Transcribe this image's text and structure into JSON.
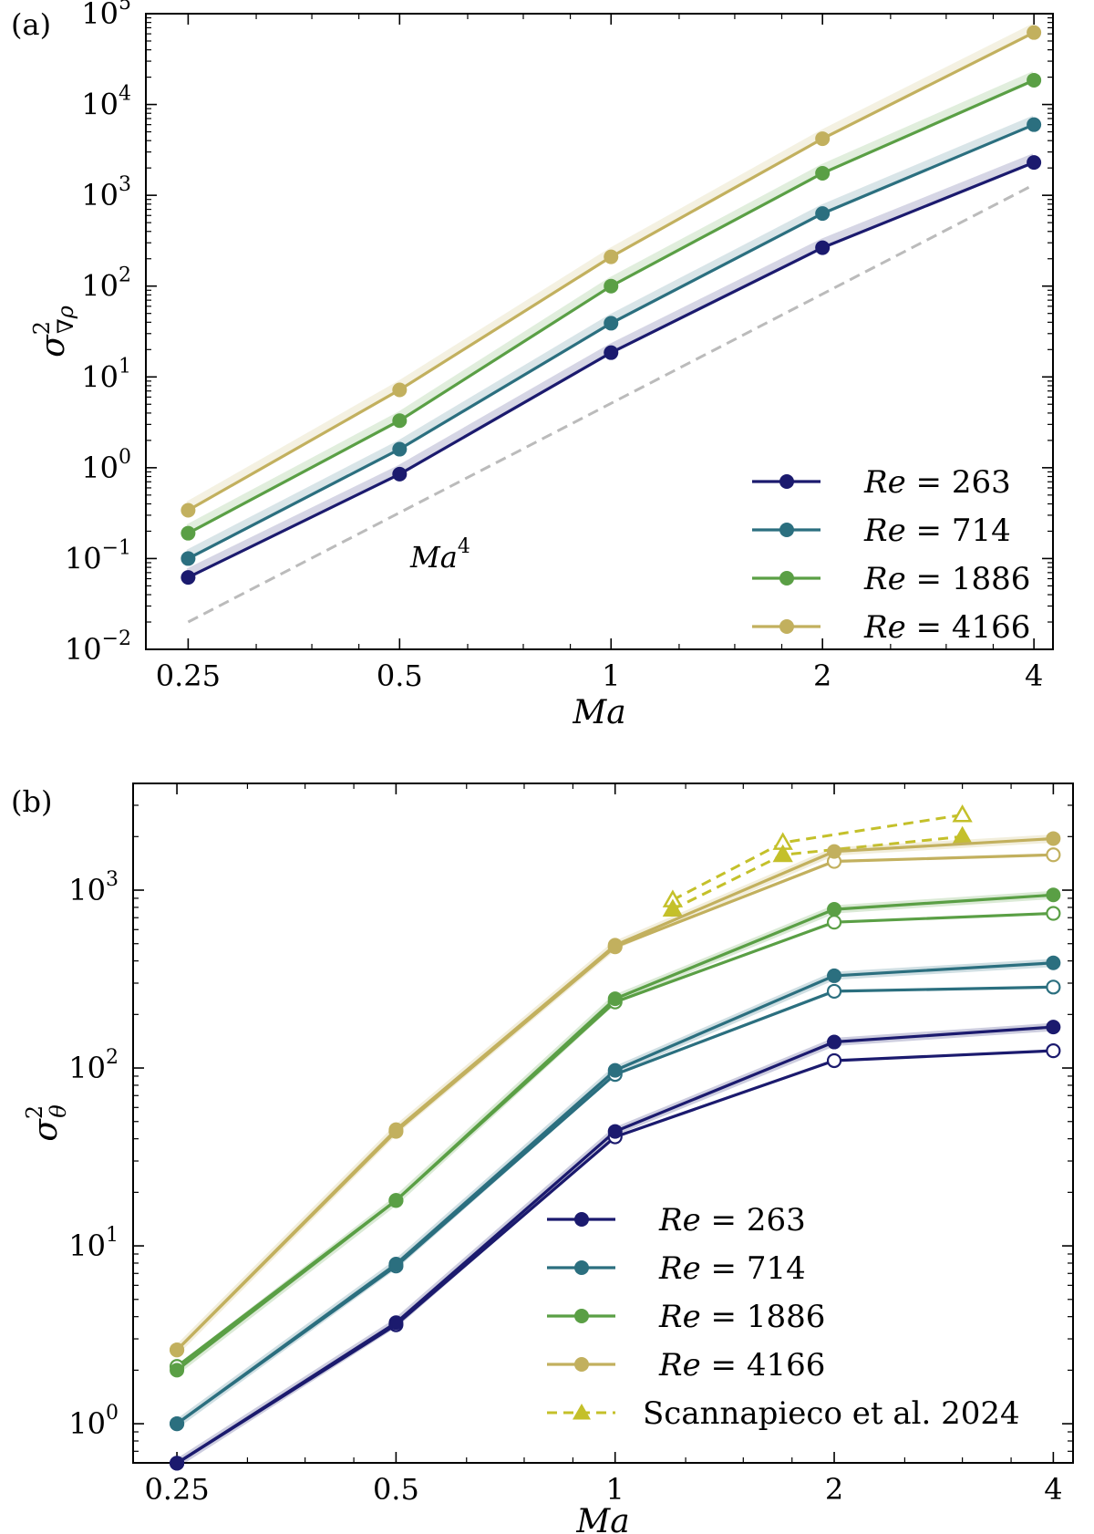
{
  "chart_data": [
    {
      "type": "line",
      "panel_label": "(a)",
      "xscale": "log2",
      "yscale": "log10",
      "xlabel": "Ma",
      "ylabel": "σ²∇ρ",
      "ylabel_main": "σ",
      "ylabel_sup": "2",
      "ylabel_sub": "∇ρ",
      "xlim": [
        0.25,
        4
      ],
      "ylim_exp": [
        -2,
        5
      ],
      "x_ticks": [
        0.25,
        0.5,
        1,
        2,
        4
      ],
      "x_tick_labels": [
        "0.25",
        "0.5",
        "1",
        "2",
        "4"
      ],
      "y_tick_exponents": [
        -2,
        -1,
        0,
        1,
        2,
        3,
        4,
        5
      ],
      "y_tick_base": "10",
      "y_tick_exp_labels": [
        "−2",
        "−1",
        "0",
        "1",
        "2",
        "3",
        "4",
        "5"
      ],
      "x": [
        0.25,
        0.5,
        1,
        2,
        4
      ],
      "series": [
        {
          "name": "Re = 263",
          "re": "263",
          "color": "#1b1a6e",
          "values": [
            0.062,
            0.85,
            18.5,
            265,
            2300
          ]
        },
        {
          "name": "Re = 714",
          "re": "714",
          "color": "#2b6f7f",
          "values": [
            0.1,
            1.6,
            39,
            630,
            6000
          ]
        },
        {
          "name": "Re = 1886",
          "re": "1886",
          "color": "#5a9f45",
          "values": [
            0.19,
            3.3,
            100,
            1750,
            18500
          ]
        },
        {
          "name": "Re = 4166",
          "re": "4166",
          "color": "#c2b05e",
          "values": [
            0.34,
            7.2,
            210,
            4200,
            62000
          ]
        }
      ],
      "reference_line": {
        "label": "Ma",
        "label_sup": "4",
        "x": [
          0.25,
          4
        ],
        "values": [
          0.02,
          1310
        ],
        "color": "#bbbbbb",
        "style": "dashed"
      },
      "legend_position": "bottom-right"
    },
    {
      "type": "line",
      "panel_label": "(b)",
      "xscale": "log2",
      "yscale": "log10",
      "xlabel": "Ma",
      "ylabel": "σ²θ",
      "ylabel_main": "σ",
      "ylabel_sup": "2",
      "ylabel_sub": "θ",
      "xlim": [
        0.25,
        4
      ],
      "ylim_exp": [
        -0.22,
        3.6
      ],
      "x_ticks": [
        0.25,
        0.5,
        1,
        2,
        4
      ],
      "x_tick_labels": [
        "0.25",
        "0.5",
        "1",
        "2",
        "4"
      ],
      "y_tick_exponents": [
        0,
        1,
        2,
        3
      ],
      "y_tick_base": "10",
      "y_tick_exp_labels": [
        "0",
        "1",
        "2",
        "3"
      ],
      "x": [
        0.25,
        0.5,
        1,
        2,
        4
      ],
      "series": [
        {
          "name": "Re = 263",
          "re": "263",
          "color": "#1b1a6e",
          "filled": [
            0.6,
            3.7,
            44,
            140,
            170
          ],
          "open": [
            0.6,
            3.6,
            41,
            110,
            125
          ]
        },
        {
          "name": "Re = 714",
          "re": "714",
          "color": "#2b6f7f",
          "filled": [
            1.0,
            7.9,
            97,
            330,
            390
          ],
          "open": [
            1.0,
            7.7,
            92,
            270,
            285
          ]
        },
        {
          "name": "Re = 1886",
          "re": "1886",
          "color": "#5a9f45",
          "filled": [
            2.0,
            18,
            245,
            780,
            940
          ],
          "open": [
            2.1,
            18,
            235,
            660,
            740
          ]
        },
        {
          "name": "Re = 4166",
          "re": "4166",
          "color": "#c2b05e",
          "filled": [
            2.6,
            45,
            490,
            1650,
            1950
          ],
          "open": [
            2.6,
            44,
            480,
            1450,
            1580
          ]
        }
      ],
      "comparison": {
        "name": "Scannapieco et al. 2024",
        "color": "#c4c02a",
        "style": "dashed",
        "x": [
          1.2,
          1.7,
          3.0
        ],
        "filled": [
          780,
          1580,
          2000
        ],
        "open": [
          880,
          1850,
          2650
        ]
      },
      "legend_position": "bottom-right"
    }
  ]
}
